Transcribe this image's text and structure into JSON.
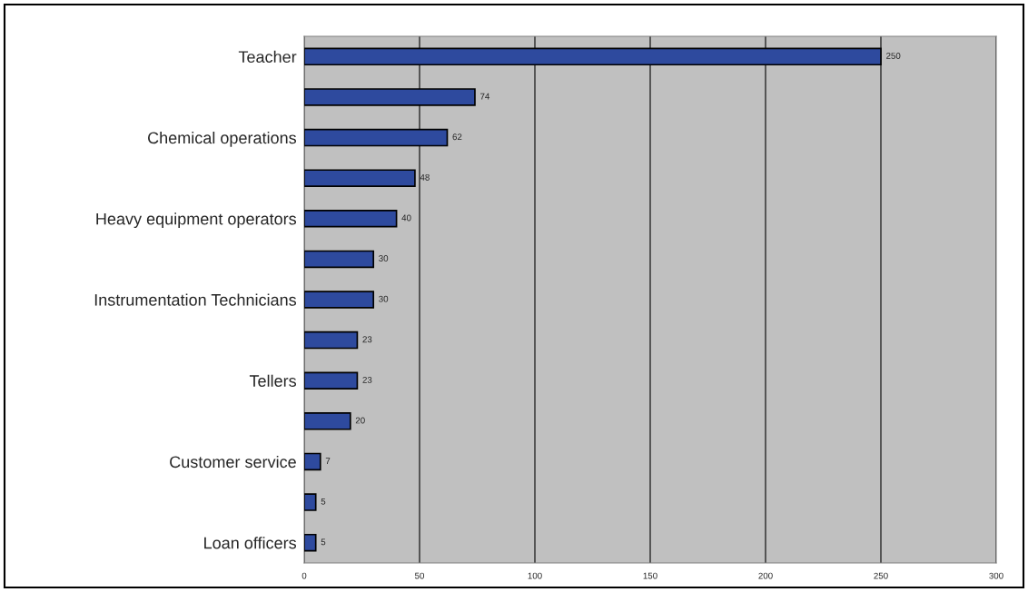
{
  "chart_data": {
    "type": "bar",
    "orientation": "horizontal",
    "categories": [
      "Teacher",
      null,
      "Chemical operations",
      null,
      "Heavy equipment operators",
      null,
      "Instrumentation Technicians",
      null,
      "Tellers",
      null,
      "Customer service",
      null,
      "Loan officers"
    ],
    "values": [
      250,
      74,
      62,
      48,
      40,
      30,
      30,
      23,
      23,
      20,
      7,
      5,
      5
    ],
    "color": "#2e4a9e",
    "xlim": [
      0,
      300
    ],
    "xticks": [
      0,
      50,
      100,
      150,
      200,
      250,
      300
    ],
    "grid": "x",
    "data_labels": true,
    "legend": false
  }
}
